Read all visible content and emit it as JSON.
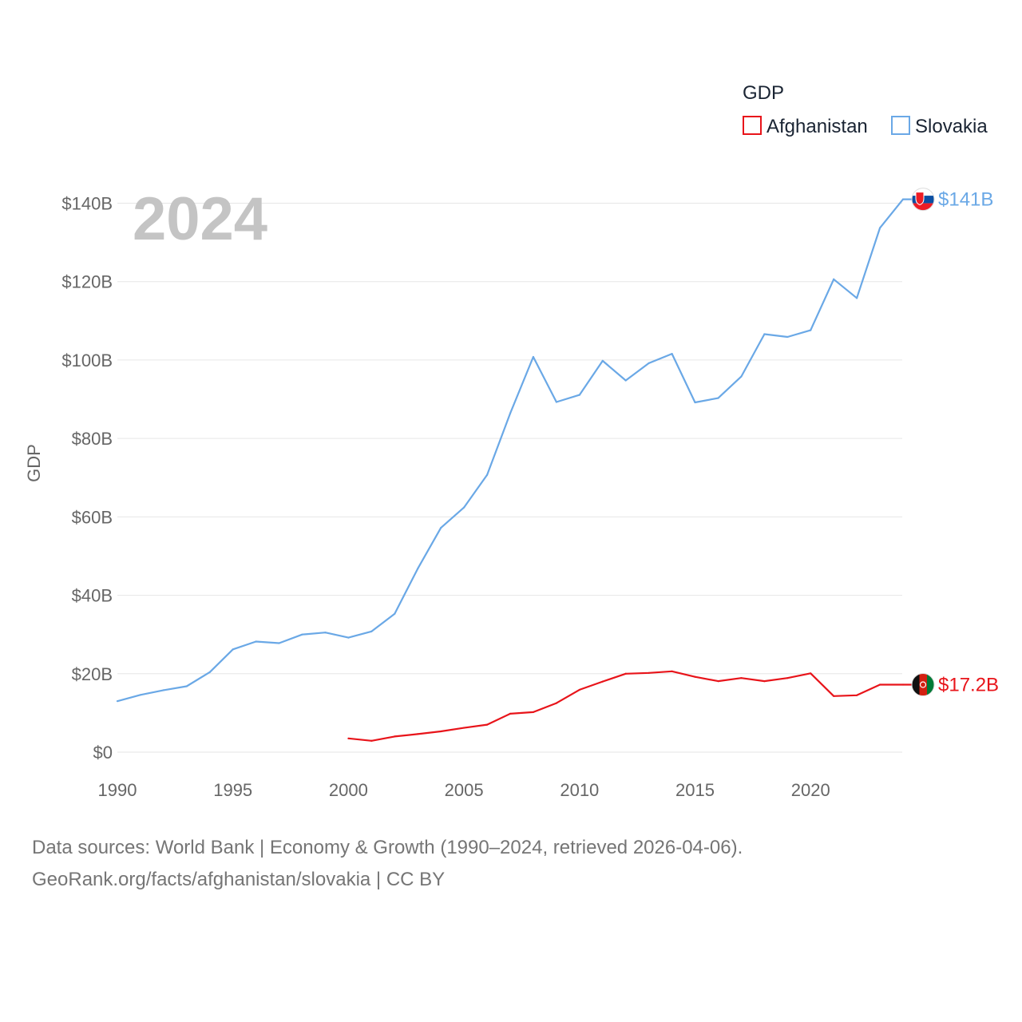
{
  "chart_data": {
    "type": "line",
    "title": "GDP",
    "year_label": "2024",
    "ylabel": "GDP",
    "xlim": [
      1990,
      2024
    ],
    "ylim": [
      0,
      140
    ],
    "x_ticks": [
      1990,
      1995,
      2000,
      2005,
      2010,
      2015,
      2020
    ],
    "y_ticks": [
      {
        "value": 0,
        "label": "$0"
      },
      {
        "value": 20,
        "label": "$20B"
      },
      {
        "value": 40,
        "label": "$40B"
      },
      {
        "value": 60,
        "label": "$60B"
      },
      {
        "value": 80,
        "label": "$80B"
      },
      {
        "value": 100,
        "label": "$100B"
      },
      {
        "value": 120,
        "label": "$120B"
      },
      {
        "value": 140,
        "label": "$140B"
      }
    ],
    "legend_title": "GDP",
    "series": [
      {
        "name": "Afghanistan",
        "color": "#e8141a",
        "end_label": "$17.2B",
        "flag_icon": "afghanistan-flag-icon",
        "points": [
          [
            2000,
            3.5
          ],
          [
            2001,
            2.9
          ],
          [
            2002,
            4.0
          ],
          [
            2003,
            4.6
          ],
          [
            2004,
            5.3
          ],
          [
            2005,
            6.2
          ],
          [
            2006,
            7.0
          ],
          [
            2007,
            9.8
          ],
          [
            2008,
            10.2
          ],
          [
            2009,
            12.5
          ],
          [
            2010,
            15.9
          ],
          [
            2011,
            18.0
          ],
          [
            2012,
            20.0
          ],
          [
            2013,
            20.2
          ],
          [
            2014,
            20.6
          ],
          [
            2015,
            19.2
          ],
          [
            2016,
            18.1
          ],
          [
            2017,
            18.9
          ],
          [
            2018,
            18.1
          ],
          [
            2019,
            18.9
          ],
          [
            2020,
            20.1
          ],
          [
            2021,
            14.3
          ],
          [
            2022,
            14.5
          ],
          [
            2023,
            17.2
          ],
          [
            2024,
            17.2
          ]
        ]
      },
      {
        "name": "Slovakia",
        "color": "#6aa8e6",
        "end_label": "$141B",
        "flag_icon": "slovakia-flag-icon",
        "points": [
          [
            1990,
            13.0
          ],
          [
            1991,
            14.6
          ],
          [
            1992,
            15.8
          ],
          [
            1993,
            16.8
          ],
          [
            1994,
            20.4
          ],
          [
            1995,
            26.2
          ],
          [
            1996,
            28.2
          ],
          [
            1997,
            27.8
          ],
          [
            1998,
            30.0
          ],
          [
            1999,
            30.5
          ],
          [
            2000,
            29.2
          ],
          [
            2001,
            30.8
          ],
          [
            2002,
            35.3
          ],
          [
            2003,
            46.8
          ],
          [
            2004,
            57.2
          ],
          [
            2005,
            62.4
          ],
          [
            2006,
            70.7
          ],
          [
            2007,
            86.4
          ],
          [
            2008,
            100.8
          ],
          [
            2009,
            89.3
          ],
          [
            2010,
            91.1
          ],
          [
            2011,
            99.8
          ],
          [
            2012,
            94.8
          ],
          [
            2013,
            99.2
          ],
          [
            2014,
            101.6
          ],
          [
            2015,
            89.2
          ],
          [
            2016,
            90.3
          ],
          [
            2017,
            95.8
          ],
          [
            2018,
            106.6
          ],
          [
            2019,
            105.9
          ],
          [
            2020,
            107.6
          ],
          [
            2021,
            120.6
          ],
          [
            2022,
            115.8
          ],
          [
            2023,
            133.7
          ],
          [
            2024,
            141.0
          ]
        ]
      }
    ]
  },
  "footer": {
    "line1": "Data sources: World Bank | Economy & Growth (1990–2024, retrieved 2026-04-06).",
    "line2": "GeoRank.org/facts/afghanistan/slovakia | CC BY"
  }
}
